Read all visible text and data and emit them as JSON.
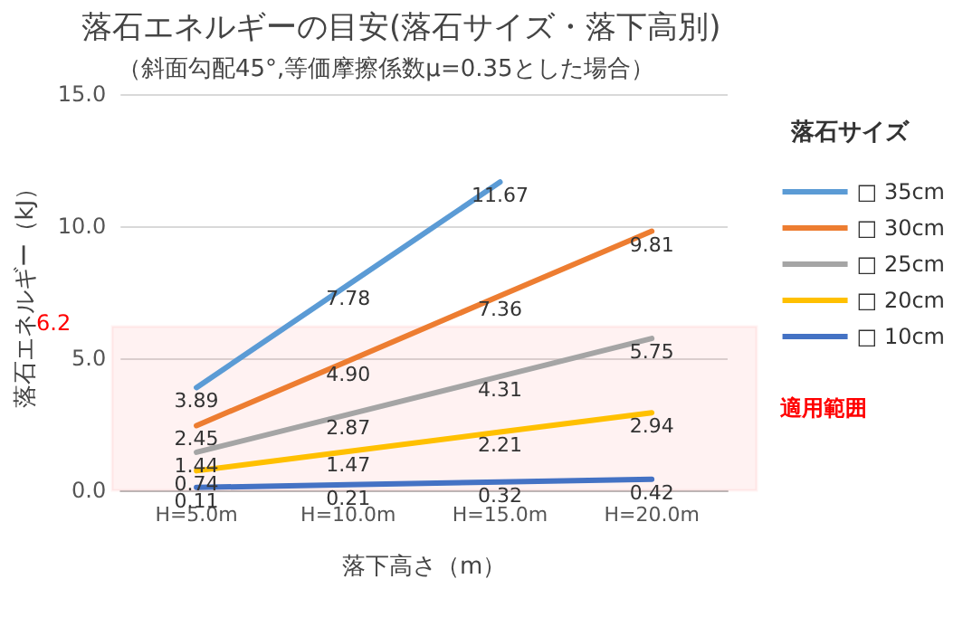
{
  "chart_data": {
    "type": "line",
    "title": "落石エネルギーの目安(落石サイズ・落下高別)",
    "subtitle": "（斜面勾配45°,等価摩擦係数μ=0.35とした場合）",
    "xlabel": "落下高さ（m）",
    "ylabel": "落石エネルギー（kJ）",
    "legend_title": "落石サイズ",
    "categories": [
      "H=5.0m",
      "H=10.0m",
      "H=15.0m",
      "H=20.0m"
    ],
    "series": [
      {
        "name": "□ 35cm",
        "color": "#5b9bd5",
        "values": [
          3.89,
          7.78,
          11.67,
          null
        ],
        "value_labels": [
          "3.89",
          "7.78",
          "11.67",
          null
        ]
      },
      {
        "name": "□ 30cm",
        "color": "#ed7d31",
        "values": [
          2.45,
          4.9,
          7.36,
          9.81
        ],
        "value_labels": [
          "2.45",
          "4.90",
          "7.36",
          "9.81"
        ]
      },
      {
        "name": "□ 25cm",
        "color": "#a5a5a5",
        "values": [
          1.44,
          2.87,
          4.31,
          5.75
        ],
        "value_labels": [
          "1.44",
          "2.87",
          "4.31",
          "5.75"
        ]
      },
      {
        "name": "□ 20cm",
        "color": "#ffc000",
        "values": [
          0.74,
          1.47,
          2.21,
          2.94
        ],
        "value_labels": [
          "0.74",
          "1.47",
          "2.21",
          "2.94"
        ]
      },
      {
        "name": "□ 10cm",
        "color": "#4472c4",
        "values": [
          0.11,
          0.21,
          0.32,
          0.42
        ],
        "value_labels": [
          "0.11",
          "0.21",
          "0.32",
          "0.42"
        ]
      }
    ],
    "ylim": [
      0,
      15
    ],
    "yticks": [
      {
        "value": 0,
        "label": "0.0"
      },
      {
        "value": 5,
        "label": "5.0"
      },
      {
        "value": 10,
        "label": "10.0"
      },
      {
        "value": 15,
        "label": "15.0"
      }
    ],
    "grid": "y",
    "legend": "right",
    "marker": "none",
    "line_style": "solid",
    "bands": [
      {
        "axis": "y",
        "from": 0,
        "to": 6.2,
        "label": "適用範囲",
        "color": "#ff0000"
      }
    ],
    "annotations": [
      "6.2"
    ]
  }
}
